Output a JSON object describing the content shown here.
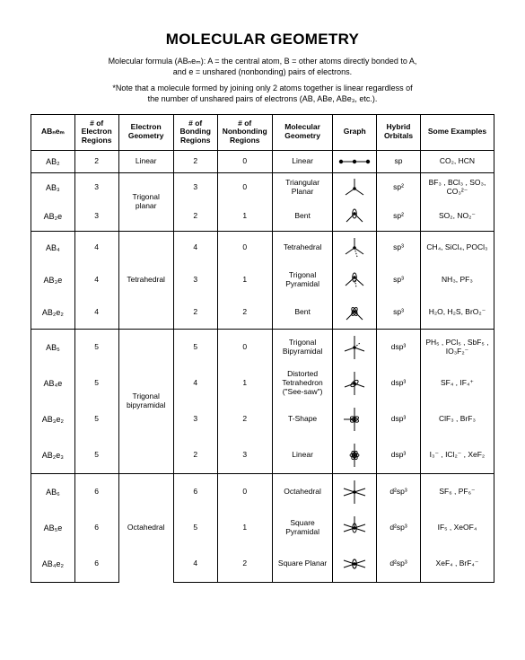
{
  "title": "MOLECULAR GEOMETRY",
  "intro_line1": "Molecular formula (ABₙeₘ): A = the central atom, B = other atoms directly bonded to A,",
  "intro_line2": "and e = unshared (nonbonding) pairs of electrons.",
  "note_line1": "*Note that a molecule formed by joining only 2 atoms together is linear regardless of",
  "note_line2": "the number of unshared pairs of electrons (AB, ABe, ABe₃, etc.).",
  "headers": [
    "ABₙeₘ",
    "# of Electron Regions",
    "Electron Geometry",
    "# of Bonding Regions",
    "# of Nonbonding Regions",
    "Molecular Geometry",
    "Graph",
    "Hybrid Orbitals",
    "Some Examples"
  ],
  "groups": [
    {
      "egeom": "Linear",
      "rows": [
        {
          "formula": "AB₂",
          "n": "2",
          "bond": "2",
          "nbond": "0",
          "mgeom": "Linear",
          "hybrid": "sp",
          "ex": "CO₂, HCN",
          "graph": "linear"
        }
      ]
    },
    {
      "egeom": "Trigonal planar",
      "rows": [
        {
          "formula": "AB₃",
          "n": "3",
          "bond": "3",
          "nbond": "0",
          "mgeom": "Triangular Planar",
          "hybrid": "sp²",
          "ex": "BF₃ , BCl₃ , SO₃, CO₃²⁻",
          "graph": "trigplanar"
        },
        {
          "formula": "AB₂e",
          "n": "3",
          "bond": "2",
          "nbond": "1",
          "mgeom": "Bent",
          "hybrid": "sp²",
          "ex": "SO₂, NO₂⁻",
          "graph": "bent"
        }
      ]
    },
    {
      "egeom": "Tetrahedral",
      "rows": [
        {
          "formula": "AB₄",
          "n": "4",
          "bond": "4",
          "nbond": "0",
          "mgeom": "Tetrahedral",
          "hybrid": "sp³",
          "ex": "CH₄, SiCl₄, POCl₃",
          "graph": "tetra"
        },
        {
          "formula": "AB₃e",
          "n": "4",
          "bond": "3",
          "nbond": "1",
          "mgeom": "Trigonal Pyramidal",
          "hybrid": "sp³",
          "ex": "NH₃, PF₃",
          "graph": "trigpyr"
        },
        {
          "formula": "AB₂e₂",
          "n": "4",
          "bond": "2",
          "nbond": "2",
          "mgeom": "Bent",
          "hybrid": "sp³",
          "ex": "H₂O, H₂S, BrO₂⁻",
          "graph": "bent2"
        }
      ]
    },
    {
      "egeom": "Trigonal bipyramidal",
      "rows": [
        {
          "formula": "AB₅",
          "n": "5",
          "bond": "5",
          "nbond": "0",
          "mgeom": "Trigonal Bipyramidal",
          "hybrid": "dsp³",
          "ex": "PH₅ , PCl₅ , SbF₅ , IO₃F₂⁻",
          "graph": "tbp"
        },
        {
          "formula": "AB₄e",
          "n": "5",
          "bond": "4",
          "nbond": "1",
          "mgeom": "Distorted Tetrahedron (\"See-saw\")",
          "hybrid": "dsp³",
          "ex": "SF₄ , IF₄⁺",
          "graph": "seesaw"
        },
        {
          "formula": "AB₃e₂",
          "n": "5",
          "bond": "3",
          "nbond": "2",
          "mgeom": "T-Shape",
          "hybrid": "dsp³",
          "ex": "ClF₃ , BrF₃",
          "graph": "tshape"
        },
        {
          "formula": "AB₂e₃",
          "n": "5",
          "bond": "2",
          "nbond": "3",
          "mgeom": "Linear",
          "hybrid": "dsp³",
          "ex": "I₃⁻ , ICl₂⁻ , XeF₂",
          "graph": "linear3"
        }
      ]
    },
    {
      "egeom": "Octahedral",
      "rows": [
        {
          "formula": "AB₆",
          "n": "6",
          "bond": "6",
          "nbond": "0",
          "mgeom": "Octahedral",
          "hybrid": "d²sp³",
          "ex": "SF₆ , PF₆⁻",
          "graph": "octa"
        },
        {
          "formula": "AB₅e",
          "n": "6",
          "bond": "5",
          "nbond": "1",
          "mgeom": "Square Pyramidal",
          "hybrid": "d²sp³",
          "ex": "IF₅ , XeOF₄",
          "graph": "sqpyr"
        },
        {
          "formula": "AB₄e₂",
          "n": "6",
          "bond": "4",
          "nbond": "2",
          "mgeom": "Square Planar",
          "hybrid": "d²sp³",
          "ex": "XeF₄ , BrF₄⁻",
          "graph": "sqplanar"
        }
      ]
    }
  ]
}
